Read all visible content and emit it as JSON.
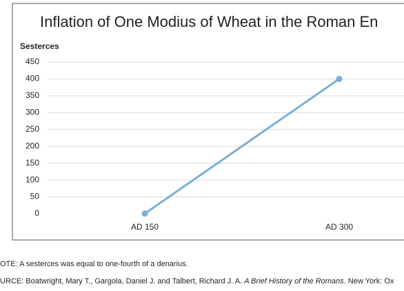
{
  "chart_data": {
    "type": "line",
    "title": "Inflation of One Modius of Wheat in the Roman En",
    "y_label": "Sesterces",
    "categories": [
      "AD 150",
      "AD 300"
    ],
    "values": [
      0.5,
      400
    ],
    "color": "#7aafd6",
    "ylim": [
      0,
      450
    ],
    "yticks": [
      0,
      50,
      100,
      150,
      200,
      250,
      300,
      350,
      400,
      450
    ],
    "grid": true,
    "note": "OTE: A sesterces was equal to one-fourth of a denarius.",
    "source": {
      "prefix": "URCE: Boatwright, Mary T., Gargola, Daniel J. and Talbert, Richard J. A. ",
      "italic": "A Brief History of the Romans",
      "suffix": ". New York: Ox"
    }
  }
}
